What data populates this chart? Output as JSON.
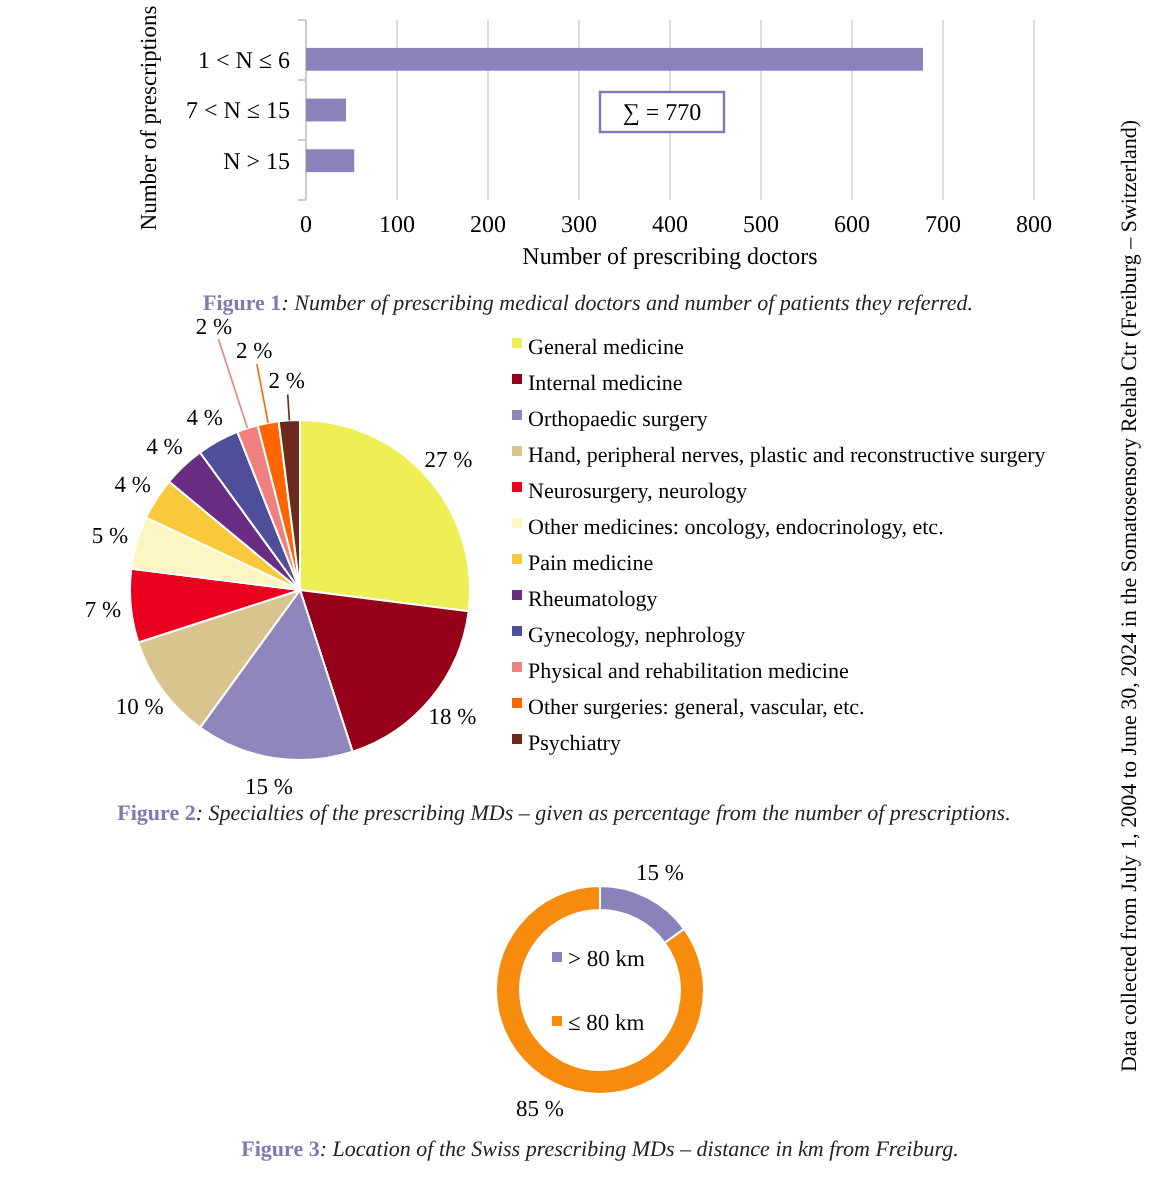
{
  "chart_data": [
    {
      "type": "bar",
      "orientation": "horizontal",
      "title": "Figure 1: Number of prescribing medical doctors and number of patients they referred.",
      "xlabel": "Number of prescribing doctors",
      "ylabel": "Number of prescriptions",
      "categories": [
        "1 < N ≤ 6",
        "7 < N ≤ 15",
        "N > 15"
      ],
      "values": [
        678,
        44,
        53
      ],
      "color": "#8a82bb",
      "xlim": [
        0,
        800
      ],
      "xticks": [
        0,
        100,
        200,
        300,
        400,
        500,
        600,
        700,
        800
      ],
      "grid": "x",
      "annotations": [
        "∑ = 770"
      ]
    },
    {
      "type": "pie",
      "title": "Figure 2: Specialties of the prescribing MDs – given as percentage from the number of prescriptions.",
      "categories": [
        "General medicine",
        "Internal medicine",
        "Orthopaedic surgery",
        "Hand, peripheral nerves, plastic and reconstructive surgery",
        "Neurosurgery, neurology",
        "Other medicines: oncology, endocrinology, etc.",
        "Pain medicine",
        "Rheumatology",
        "Gynecology, nephrology",
        "Physical and rehabilitation medicine",
        "Other surgeries: general, vascular, etc.",
        "Psychiatry"
      ],
      "values": [
        27,
        18,
        15,
        10,
        7,
        5,
        4,
        4,
        4,
        2,
        2,
        2
      ],
      "value_labels": [
        "27 %",
        "18 %",
        "15 %",
        "10 %",
        "7 %",
        "5 %",
        "4 %",
        "4 %",
        "4 %",
        "2 %",
        "2 %",
        "2 %"
      ],
      "colors": [
        "#eeee55",
        "#960018",
        "#8f87bb",
        "#d9c38f",
        "#e8001e",
        "#fbf6c2",
        "#f8c93a",
        "#6a2b82",
        "#4e4e9b",
        "#f08080",
        "#ff6600",
        "#6b2a1a"
      ],
      "legend": "right",
      "annotations": [
        "Data collected from July 1, 2004 to June 30, 2024 in the Somatosensory Rehab Ctr (Freiburg – Switzerland)"
      ]
    },
    {
      "type": "donut",
      "title": "Figure 3: Location of the Swiss prescribing MDs – distance in km from Freiburg.",
      "categories": [
        "> 80 km",
        "≤ 80 km"
      ],
      "values": [
        15,
        85
      ],
      "value_labels": [
        "15 %",
        "85 %"
      ],
      "colors": [
        "#8a82bb",
        "#f68b0d"
      ],
      "legend": "center"
    }
  ]
}
